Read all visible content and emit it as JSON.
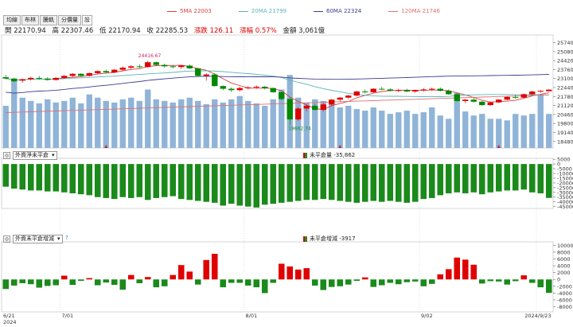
{
  "legend": [
    {
      "label": "5MA 22003",
      "color": "#d94040"
    },
    {
      "label": "20MA 21799",
      "color": "#5ab4b4"
    },
    {
      "label": "60MA 22324",
      "color": "#3b3b8f"
    },
    {
      "label": "120MA 21746",
      "color": "#e07070"
    }
  ],
  "tabs": [
    "均線",
    "布林",
    "騰軌",
    "分價量",
    "設"
  ],
  "info": {
    "open": "開 22170.94",
    "high": "高 22307.46",
    "low": "低 22170.94",
    "close": "收 22285.53",
    "change": "漲跌 126.11",
    "pct": "漲幅 0.57%",
    "amount": "金額 3,061億"
  },
  "chart_data": [
    {
      "type": "candlestick",
      "annotations": [
        "24416.67",
        "19662.74"
      ],
      "ylim": [
        18000,
        26300
      ],
      "yticks": [
        18480,
        19140,
        19800,
        20460,
        21120,
        21780,
        22440,
        23100,
        23760,
        24420,
        25080,
        25740
      ],
      "dates_shown": [
        "6/21\n2024",
        "7/01",
        "8/01",
        "9/02",
        "2024/9/23"
      ],
      "candles": [
        [
          23200,
          23380,
          23050,
          23100
        ],
        [
          23100,
          23150,
          22850,
          22900
        ],
        [
          22950,
          23100,
          22800,
          23050
        ],
        [
          23050,
          23250,
          22950,
          23150
        ],
        [
          23150,
          23300,
          23000,
          23100
        ],
        [
          23100,
          23200,
          22950,
          23000
        ],
        [
          23000,
          23200,
          22950,
          23150
        ],
        [
          23150,
          23350,
          23100,
          23300
        ],
        [
          23300,
          23500,
          23200,
          23450
        ],
        [
          23450,
          23500,
          23250,
          23300
        ],
        [
          23300,
          23550,
          23250,
          23500
        ],
        [
          23500,
          23700,
          23400,
          23650
        ],
        [
          23650,
          23750,
          23500,
          23550
        ],
        [
          23550,
          23800,
          23500,
          23750
        ],
        [
          23750,
          24000,
          23650,
          23900
        ],
        [
          23900,
          24100,
          23800,
          24000
        ],
        [
          24000,
          24150,
          23850,
          23950
        ],
        [
          23950,
          24416,
          23900,
          24300
        ],
        [
          24300,
          24350,
          24050,
          24100
        ],
        [
          24100,
          24200,
          23900,
          24000
        ],
        [
          24000,
          24100,
          23850,
          23950
        ],
        [
          23950,
          24100,
          23800,
          24050
        ],
        [
          24050,
          24150,
          23800,
          23850
        ],
        [
          23850,
          23900,
          23250,
          23300
        ],
        [
          23300,
          23500,
          22950,
          23400
        ],
        [
          23400,
          23500,
          22500,
          22550
        ],
        [
          22550,
          22600,
          22250,
          22350
        ],
        [
          22350,
          22450,
          22100,
          22250
        ],
        [
          22250,
          22500,
          22150,
          22400
        ],
        [
          22400,
          22550,
          22300,
          22450
        ],
        [
          22450,
          22600,
          22350,
          22500
        ],
        [
          22500,
          22550,
          22300,
          22400
        ],
        [
          22400,
          22450,
          22050,
          22100
        ],
        [
          22100,
          22150,
          21500,
          21600
        ],
        [
          21600,
          21700,
          19662,
          20100
        ],
        [
          20100,
          21000,
          20000,
          20900
        ],
        [
          20900,
          21200,
          20700,
          21100
        ],
        [
          21100,
          21250,
          20750,
          20800
        ],
        [
          20800,
          21300,
          20700,
          21200
        ],
        [
          21200,
          21600,
          21100,
          21550
        ],
        [
          21550,
          21750,
          21400,
          21700
        ],
        [
          21700,
          21900,
          21600,
          21850
        ],
        [
          21850,
          22200,
          21800,
          22150
        ],
        [
          22150,
          22300,
          22000,
          22100
        ],
        [
          22100,
          22400,
          22050,
          22350
        ],
        [
          22350,
          22500,
          22250,
          22300
        ],
        [
          22300,
          22400,
          22150,
          22200
        ],
        [
          22200,
          22350,
          22100,
          22250
        ],
        [
          22250,
          22350,
          22100,
          22150
        ],
        [
          22150,
          22300,
          22050,
          22250
        ],
        [
          22250,
          22400,
          22150,
          22300
        ],
        [
          22300,
          22450,
          22200,
          22350
        ],
        [
          22350,
          22450,
          22150,
          22200
        ],
        [
          22200,
          22300,
          21900,
          21950
        ],
        [
          21950,
          22050,
          21400,
          21450
        ],
        [
          21450,
          21600,
          21300,
          21550
        ],
        [
          21550,
          21700,
          21350,
          21400
        ],
        [
          21400,
          21450,
          21100,
          21150
        ],
        [
          21150,
          21400,
          21100,
          21350
        ],
        [
          21350,
          21600,
          21300,
          21550
        ],
        [
          21550,
          21800,
          21500,
          21750
        ],
        [
          21750,
          21900,
          21600,
          21700
        ],
        [
          21700,
          22000,
          21650,
          21950
        ],
        [
          21950,
          22200,
          21900,
          22150
        ],
        [
          22150,
          22250,
          22050,
          22200
        ],
        [
          22170.94,
          22307.46,
          22170.94,
          22285.53
        ]
      ],
      "volume": [
        0.52,
        0.85,
        0.62,
        0.58,
        0.55,
        0.6,
        0.56,
        0.58,
        0.62,
        0.55,
        0.66,
        0.62,
        0.58,
        0.56,
        0.6,
        0.62,
        0.58,
        0.72,
        0.6,
        0.58,
        0.56,
        0.6,
        0.62,
        0.58,
        0.54,
        0.6,
        0.56,
        0.6,
        0.64,
        0.58,
        0.55,
        0.52,
        0.6,
        0.72,
        0.9,
        0.62,
        0.56,
        0.6,
        0.58,
        0.54,
        0.5,
        0.52,
        0.48,
        0.46,
        0.5,
        0.46,
        0.42,
        0.44,
        0.46,
        0.42,
        0.44,
        0.5,
        0.4,
        0.36,
        0.68,
        0.45,
        0.4,
        0.42,
        0.36,
        0.36,
        0.34,
        0.42,
        0.4,
        0.42,
        0.65,
        0.42
      ]
    },
    {
      "type": "bar",
      "title": "外資淨未平倉",
      "value_label": "未平倉量 -35,862",
      "ylim": [
        -47000,
        6000
      ],
      "yticks": [
        5000,
        0,
        -5000,
        -10000,
        -15000,
        -20000,
        -25000,
        -30000,
        -35000,
        -40000,
        -45000
      ],
      "values": [
        -24000,
        -26000,
        -27000,
        -28000,
        -28000,
        -29000,
        -29000,
        -30000,
        -31000,
        -32000,
        -33000,
        -35000,
        -36000,
        -37000,
        -35000,
        -36000,
        -35000,
        -38000,
        -36000,
        -35000,
        -34000,
        -37000,
        -38000,
        -39000,
        -40000,
        -41000,
        -44000,
        -42000,
        -44000,
        -45000,
        -46000,
        -43000,
        -42000,
        -41000,
        -40000,
        -39000,
        -38000,
        -38000,
        -37000,
        -38000,
        -39000,
        -40000,
        -41000,
        -40000,
        -39000,
        -40000,
        -39000,
        -40000,
        -41000,
        -40000,
        -37000,
        -36000,
        -33000,
        -31000,
        -30000,
        -31000,
        -30000,
        -32000,
        -30000,
        -29000,
        -28000,
        -28000,
        -27000,
        -30000,
        -31000,
        -35862
      ]
    },
    {
      "type": "bar",
      "title": "外資未平倉增減",
      "value_label": "未平倉增減 -3917",
      "ylim": [
        -9500,
        11000
      ],
      "yticks": [
        10000,
        8000,
        6000,
        4000,
        2000,
        0,
        -2000,
        -4000,
        -6000,
        -8000
      ],
      "values": [
        -2800,
        -1800,
        -1100,
        -1400,
        -2400,
        -1900,
        -1700,
        1100,
        -1600,
        -400,
        400,
        -1700,
        -900,
        -1600,
        -3000,
        1300,
        -1100,
        700,
        -2300,
        -2000,
        1300,
        4200,
        2300,
        -1500,
        5700,
        7500,
        -2300,
        -1000,
        -1000,
        -1800,
        -2300,
        -4000,
        -1000,
        4600,
        3800,
        2900,
        3300,
        -1800,
        -3100,
        -2200,
        -2000,
        -1500,
        -400,
        600,
        -2200,
        -1700,
        -1000,
        -1400,
        -800,
        -600,
        -2000,
        -1300,
        1500,
        3000,
        6400,
        5800,
        4300,
        -1200,
        -500,
        -600,
        -1500,
        -500,
        1200,
        -1000,
        -2300,
        -3917
      ]
    }
  ],
  "ui": {
    "collapse_symbol": "◎",
    "dropdown_symbol": "▾",
    "help_symbol": "?"
  }
}
